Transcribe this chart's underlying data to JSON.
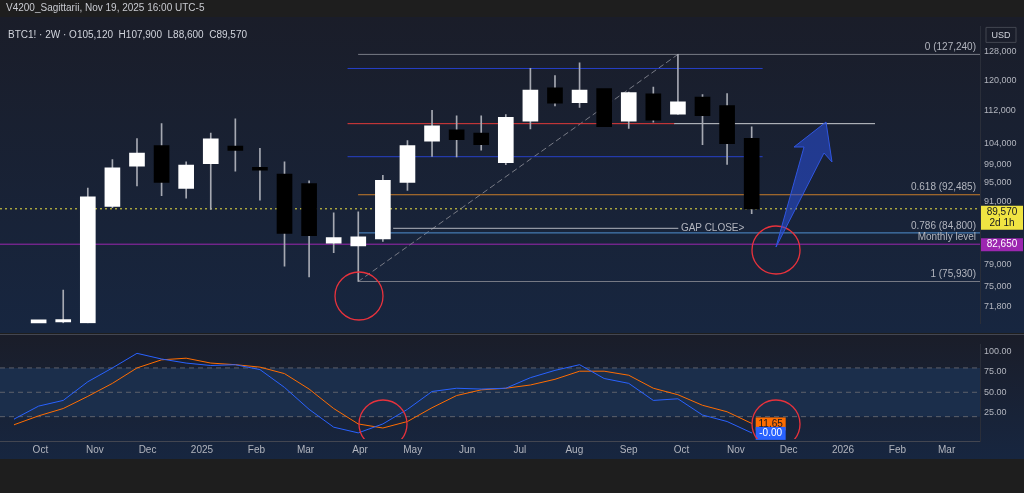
{
  "chart_data": [
    {
      "type": "candlestick",
      "title": "BTC1! · 2W · O105,120  H107,900  L88,600  C89,570",
      "log": true,
      "tick_labels": "y",
      "x": [
        "2024-09-30",
        "2024-10-14",
        "2024-10-28",
        "2024-11-11",
        "2024-11-25",
        "2024-12-09",
        "2024-12-23",
        "2025-01-06",
        "2025-01-20",
        "2025-02-03",
        "2025-02-17",
        "2025-03-03",
        "2025-03-17",
        "2025-03-31",
        "2025-04-14",
        "2025-04-28",
        "2025-05-12",
        "2025-05-26",
        "2025-06-09",
        "2025-06-23",
        "2025-07-07",
        "2025-07-21",
        "2025-08-04",
        "2025-08-18",
        "2025-09-01",
        "2025-09-15",
        "2025-09-29",
        "2025-10-13",
        "2025-10-27",
        "2025-11-10"
      ],
      "ohlc": [
        [
          69050,
          69600,
          69050,
          69600
        ],
        [
          69260,
          74450,
          69100,
          69620
        ],
        [
          69100,
          93890,
          69100,
          92070
        ],
        [
          90050,
          100190,
          89780,
          98310
        ],
        [
          98670,
          105080,
          94360,
          101650
        ],
        [
          103430,
          108700,
          92290,
          95120
        ],
        [
          93820,
          99690,
          91750,
          98960
        ],
        [
          99270,
          106370,
          89470,
          105000
        ],
        [
          103330,
          109880,
          97560,
          102310
        ],
        [
          98410,
          102760,
          91350,
          97770
        ],
        [
          96920,
          99690,
          78630,
          84690
        ],
        [
          94850,
          95460,
          76740,
          84270
        ],
        [
          82830,
          88750,
          81050,
          83900
        ],
        [
          82340,
          88950,
          75930,
          84040
        ],
        [
          83660,
          96630,
          83190,
          95590
        ],
        [
          95120,
          104620,
          93420,
          103430
        ],
        [
          104450,
          112040,
          100910,
          108140
        ],
        [
          107200,
          110670,
          100770,
          104830
        ],
        [
          106370,
          110670,
          102370,
          103640
        ],
        [
          99470,
          110970,
          99040,
          110260
        ],
        [
          109310,
          123300,
          107430,
          117310
        ],
        [
          117900,
          121260,
          113150,
          113890
        ],
        [
          114000,
          124830,
          112760,
          117310
        ],
        [
          117750,
          117750,
          107990,
          107990
        ],
        [
          109310,
          116800,
          107520,
          116630
        ],
        [
          116320,
          118160,
          109070,
          109540
        ],
        [
          111070,
          127240,
          111000,
          114240
        ],
        [
          115480,
          116140,
          103640,
          110670
        ],
        [
          113250,
          116380,
          99110,
          103870
        ],
        [
          105120,
          107900,
          88600,
          89570
        ]
      ],
      "colors": [
        "#ffffff",
        "#ffffff",
        "#ffffff",
        "#ffffff",
        "#ffffff",
        "#000000",
        "#ffffff",
        "#ffffff",
        "#000000",
        "#000000",
        "#000000",
        "#000000",
        "#ffffff",
        "#ffffff",
        "#ffffff",
        "#ffffff",
        "#ffffff",
        "#000000",
        "#000000",
        "#ffffff",
        "#ffffff",
        "#000000",
        "#ffffff",
        "#000000",
        "#ffffff",
        "#000000",
        "#ffffff",
        "#000000",
        "#000000",
        "#000000"
      ],
      "xlim": [
        "2024-09-08",
        "2026-03-20"
      ],
      "ylim": [
        69000,
        135600
      ],
      "yticks": [
        {
          "value": 71800,
          "label": "71,800"
        },
        {
          "value": 75000,
          "label": "75,000"
        },
        {
          "value": 79000,
          "label": "79,000"
        },
        {
          "value": 91000,
          "label": "91,000"
        },
        {
          "value": 95000,
          "label": "95,000"
        },
        {
          "value": 99000,
          "label": "99,000"
        },
        {
          "value": 104000,
          "label": "104,000"
        },
        {
          "value": 112000,
          "label": "112,000"
        },
        {
          "value": 120000,
          "label": "120,000"
        },
        {
          "value": 128000,
          "label": "128,000"
        }
      ],
      "series": [
        {
          "type": "line",
          "color": "#787b86",
          "line_style": "dashed",
          "x": [
            "2025-03-31",
            "2025-09-29"
          ],
          "values": [
            75930,
            127240
          ]
        },
        {
          "type": "line",
          "color": "#787b86",
          "x": [
            "2025-03-31",
            "2026-03-20"
          ],
          "values": [
            127240,
            127240
          ]
        },
        {
          "type": "line",
          "color": "#c77c2a",
          "x": [
            "2025-03-31",
            "2026-03-20"
          ],
          "values": [
            92485,
            92485
          ]
        },
        {
          "type": "line",
          "color": "#4f8fcf",
          "x": [
            "2025-03-31",
            "2026-03-20"
          ],
          "values": [
            84800,
            84800
          ]
        },
        {
          "type": "line",
          "color": "#787b86",
          "x": [
            "2025-03-31",
            "2026-03-20"
          ],
          "values": [
            75930,
            75930
          ]
        },
        {
          "type": "line",
          "color": "#2740c8",
          "x": [
            "2025-03-25",
            "2025-11-16"
          ],
          "values": [
            123230,
            123230
          ]
        },
        {
          "type": "line",
          "color": "#2740c8",
          "x": [
            "2025-03-25",
            "2025-11-16"
          ],
          "values": [
            100840,
            100840
          ]
        },
        {
          "type": "line",
          "color": "#e03a3a",
          "x": [
            "2025-03-25",
            "2025-09-27"
          ],
          "values": [
            108700,
            108700
          ]
        },
        {
          "type": "line",
          "color": "#c8cad0",
          "x": [
            "2025-09-27",
            "2026-01-19"
          ],
          "values": [
            108700,
            108700
          ]
        },
        {
          "type": "line",
          "color": "#b2b5be",
          "x": [
            "2025-04-20",
            "2025-09-29"
          ],
          "values": [
            85690,
            85690
          ]
        }
      ],
      "ref_lines": [
        {
          "axis": "y",
          "value": 89570,
          "label": "89,570\n2d 1h",
          "color": "#f0e442",
          "line_style": "dotted"
        },
        {
          "axis": "y",
          "value": 82650,
          "label": "82,650",
          "color": "#9c27b0"
        }
      ],
      "annotations": [
        "V4200_Sagittarii, Nov 19, 2025 16:00 UTC-5",
        "USD",
        {
          "text": "0 (127,240)",
          "x": "2026-03-20",
          "y": 127240
        },
        {
          "text": "0.618 (92,485)",
          "x": "2026-03-20",
          "y": 92485
        },
        {
          "text": "0.786 (84,800)",
          "x": "2026-03-20",
          "y": 84800
        },
        {
          "text": "Monthly level",
          "x": "2026-03-20",
          "y": 82650
        },
        {
          "text": "1 (75,930)",
          "x": "2026-03-20",
          "y": 75930
        },
        {
          "text": "GAP CLOSE>",
          "x": "2025-09-29",
          "y": 85690
        }
      ]
    },
    {
      "type": "line",
      "xlim": [
        "2024-09-08",
        "2026-03-20"
      ],
      "ylim": [
        -10,
        109
      ],
      "xticks": [
        {
          "value": "2024-10-01",
          "label": "Oct"
        },
        {
          "value": "2024-11-01",
          "label": "Nov"
        },
        {
          "value": "2024-12-01",
          "label": "Dec"
        },
        {
          "value": "2025-01-01",
          "label": "2025"
        },
        {
          "value": "2025-02-01",
          "label": "Feb"
        },
        {
          "value": "2025-03-01",
          "label": "Mar"
        },
        {
          "value": "2025-04-01",
          "label": "Apr"
        },
        {
          "value": "2025-05-01",
          "label": "May"
        },
        {
          "value": "2025-06-01",
          "label": "Jun"
        },
        {
          "value": "2025-07-01",
          "label": "Jul"
        },
        {
          "value": "2025-08-01",
          "label": "Aug"
        },
        {
          "value": "2025-09-01",
          "label": "Sep"
        },
        {
          "value": "2025-10-01",
          "label": "Oct"
        },
        {
          "value": "2025-11-01",
          "label": "Nov"
        },
        {
          "value": "2025-12-01",
          "label": "Dec"
        },
        {
          "value": "2026-01-01",
          "label": "2026"
        },
        {
          "value": "2026-02-01",
          "label": "Feb"
        },
        {
          "value": "2026-03-01",
          "label": "Mar"
        }
      ],
      "yticks": [
        {
          "value": 25,
          "label": "25.00"
        },
        {
          "value": 50,
          "label": "50.00"
        },
        {
          "value": 75,
          "label": "75.00"
        },
        {
          "value": 100,
          "label": "100.00"
        }
      ],
      "bands": [
        {
          "axis": "y",
          "from": 20,
          "to": 80,
          "color": "#1b2e4b"
        }
      ],
      "ref_lines": [
        {
          "axis": "y",
          "value": 20,
          "color": "#5d606b",
          "line_style": "dashed"
        },
        {
          "axis": "y",
          "value": 50,
          "color": "#5d606b",
          "line_style": "dashed"
        },
        {
          "axis": "y",
          "value": 80,
          "color": "#5d606b",
          "line_style": "dashed"
        }
      ],
      "series": [
        {
          "color": "#ff6d00",
          "x": [
            "2024-09-16",
            "2024-09-30",
            "2024-10-14",
            "2024-10-28",
            "2024-11-11",
            "2024-11-25",
            "2024-12-09",
            "2024-12-23",
            "2025-01-06",
            "2025-01-20",
            "2025-02-03",
            "2025-02-17",
            "2025-03-03",
            "2025-03-17",
            "2025-03-31",
            "2025-04-14",
            "2025-04-28",
            "2025-05-12",
            "2025-05-26",
            "2025-06-09",
            "2025-06-23",
            "2025-07-07",
            "2025-07-21",
            "2025-08-04",
            "2025-08-18",
            "2025-09-01",
            "2025-09-15",
            "2025-09-29",
            "2025-10-13",
            "2025-10-27",
            "2025-11-10"
          ],
          "values": [
            10,
            21,
            30,
            45,
            61,
            80,
            90,
            92,
            86,
            84,
            81,
            73,
            54,
            30,
            11,
            6,
            14,
            31,
            46,
            53,
            55,
            59,
            66,
            76,
            76,
            71,
            55,
            47,
            34,
            26,
            11.65
          ],
          "value_labels": [
            null,
            null,
            null,
            null,
            null,
            null,
            null,
            null,
            null,
            null,
            null,
            null,
            null,
            null,
            null,
            null,
            null,
            null,
            null,
            null,
            null,
            null,
            null,
            null,
            null,
            null,
            null,
            null,
            null,
            null,
            "11.65"
          ]
        },
        {
          "color": "#2962ff",
          "x": [
            "2024-09-16",
            "2024-09-30",
            "2024-10-14",
            "2024-10-28",
            "2024-11-11",
            "2024-11-25",
            "2024-12-09",
            "2024-12-23",
            "2025-01-06",
            "2025-01-20",
            "2025-02-03",
            "2025-02-17",
            "2025-03-03",
            "2025-03-17",
            "2025-03-31",
            "2025-04-14",
            "2025-04-28",
            "2025-05-12",
            "2025-05-26",
            "2025-06-09",
            "2025-06-23",
            "2025-07-07",
            "2025-07-21",
            "2025-08-04",
            "2025-08-18",
            "2025-09-01",
            "2025-09-15",
            "2025-09-29",
            "2025-10-13",
            "2025-10-27",
            "2025-11-10"
          ],
          "values": [
            17,
            33,
            40,
            63,
            80,
            98,
            91,
            86,
            83,
            84,
            78,
            56,
            29,
            7,
            0,
            11,
            29,
            51,
            55,
            54,
            55,
            68,
            77,
            84,
            67,
            61,
            40,
            42,
            22,
            14,
            0
          ],
          "value_labels": [
            null,
            null,
            null,
            null,
            null,
            null,
            null,
            null,
            null,
            null,
            null,
            null,
            null,
            null,
            null,
            null,
            null,
            null,
            null,
            null,
            null,
            null,
            null,
            null,
            null,
            null,
            null,
            null,
            null,
            null,
            "-0.00"
          ]
        }
      ]
    }
  ]
}
